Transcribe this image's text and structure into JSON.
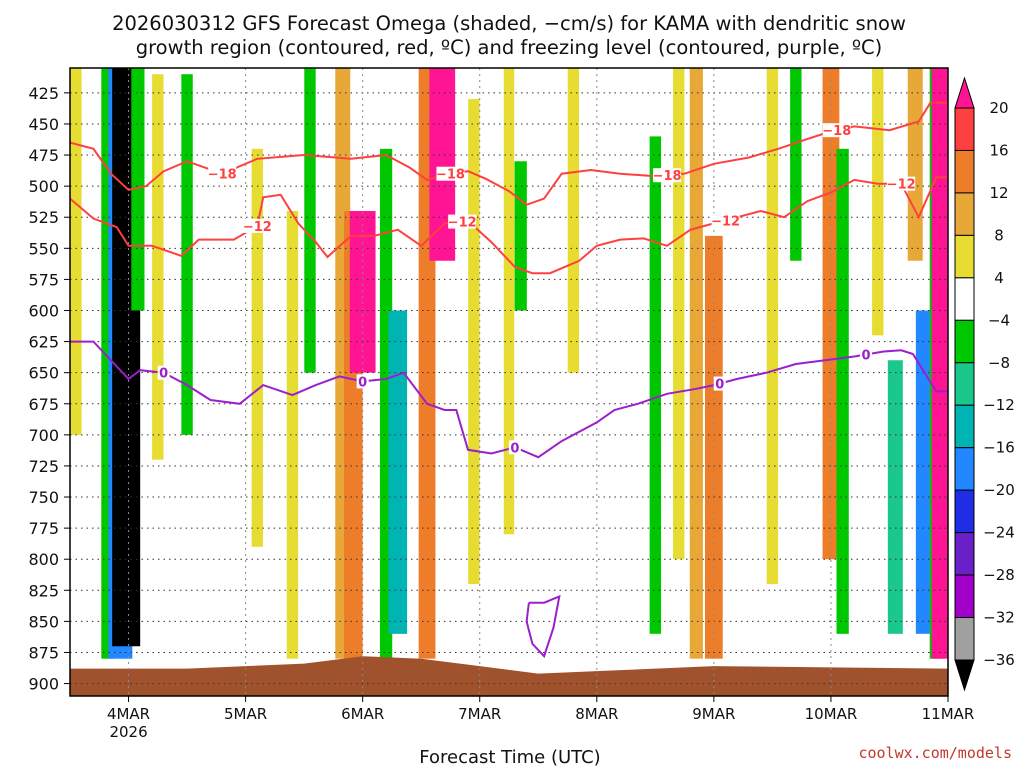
{
  "title_lines": [
    "2026030312 GFS Forecast Omega (shaded, −cm/s) for KAMA with dendritic snow",
    "growth region (contoured, red, ºC) and freezing level (contoured, purple, ºC)"
  ],
  "credit": "coolwx.com/models",
  "chart_data": {
    "type": "heatmap",
    "title": "2026030312 GFS Forecast Omega (shaded, −cm/s) for KAMA with dendritic snow growth region (contoured, red, ºC) and freezing level (contoured, purple, ºC)",
    "xlabel": "Forecast Time (UTC)",
    "ylabel": "",
    "x_range_days": [
      3.5,
      11.0
    ],
    "y_range_hpa": [
      405,
      910
    ],
    "y_ticks": [
      425,
      450,
      475,
      500,
      525,
      550,
      575,
      600,
      625,
      650,
      675,
      700,
      725,
      750,
      775,
      800,
      825,
      850,
      875,
      900
    ],
    "x_ticks": [
      {
        "day": 4,
        "label": "4MAR",
        "sub": "2026"
      },
      {
        "day": 5,
        "label": "5MAR",
        "sub": ""
      },
      {
        "day": 6,
        "label": "6MAR",
        "sub": ""
      },
      {
        "day": 7,
        "label": "7MAR",
        "sub": ""
      },
      {
        "day": 8,
        "label": "8MAR",
        "sub": ""
      },
      {
        "day": 9,
        "label": "9MAR",
        "sub": ""
      },
      {
        "day": 10,
        "label": "10MAR",
        "sub": ""
      },
      {
        "day": 11,
        "label": "11MAR",
        "sub": ""
      }
    ],
    "grid": true,
    "colorbar": {
      "labels": [
        "20",
        "16",
        "12",
        "8",
        "4",
        "−4",
        "−8",
        "−12",
        "−16",
        "−20",
        "−24",
        "−28",
        "−32",
        "−36"
      ],
      "bins": [
        {
          "min": 20,
          "max": 99,
          "color": "#ff1493"
        },
        {
          "min": 16,
          "max": 20,
          "color": "#ff4040"
        },
        {
          "min": 12,
          "max": 16,
          "color": "#ee7d2a"
        },
        {
          "min": 8,
          "max": 12,
          "color": "#e8a838"
        },
        {
          "min": 4,
          "max": 8,
          "color": "#e6dc32"
        },
        {
          "min": -4,
          "max": 4,
          "color": "#ffffff"
        },
        {
          "min": -8,
          "max": -4,
          "color": "#00c800"
        },
        {
          "min": -12,
          "max": -8,
          "color": "#1bc88c"
        },
        {
          "min": -16,
          "max": -12,
          "color": "#00b4b4"
        },
        {
          "min": -20,
          "max": -16,
          "color": "#2288ff"
        },
        {
          "min": -24,
          "max": -20,
          "color": "#1f2ee6"
        },
        {
          "min": -28,
          "max": -24,
          "color": "#6a20c8"
        },
        {
          "min": -32,
          "max": -28,
          "color": "#a000c8"
        },
        {
          "min": -36,
          "max": -32,
          "color": "#a0a0a0"
        },
        {
          "min": -99,
          "max": -36,
          "color": "#000000"
        }
      ]
    },
    "omega_features": [
      {
        "day": 3.55,
        "p_top": 405,
        "p_bot": 700,
        "value": 6
      },
      {
        "day": 3.82,
        "p_top": 405,
        "p_bot": 880,
        "value": -7
      },
      {
        "day": 3.93,
        "p_top": 405,
        "p_bot": 880,
        "value": -20
      },
      {
        "day": 3.98,
        "p_top": 405,
        "p_bot": 870,
        "value": -40
      },
      {
        "day": 4.08,
        "p_top": 405,
        "p_bot": 600,
        "value": -8
      },
      {
        "day": 4.25,
        "p_top": 410,
        "p_bot": 720,
        "value": 6
      },
      {
        "day": 4.5,
        "p_top": 410,
        "p_bot": 700,
        "value": -6
      },
      {
        "day": 5.1,
        "p_top": 470,
        "p_bot": 790,
        "value": 6
      },
      {
        "day": 5.4,
        "p_top": 520,
        "p_bot": 880,
        "value": 6
      },
      {
        "day": 5.55,
        "p_top": 405,
        "p_bot": 650,
        "value": -6
      },
      {
        "day": 5.83,
        "p_top": 405,
        "p_bot": 880,
        "value": 10
      },
      {
        "day": 5.92,
        "p_top": 520,
        "p_bot": 880,
        "value": 14
      },
      {
        "day": 6.0,
        "p_top": 520,
        "p_bot": 650,
        "value": 22
      },
      {
        "day": 6.2,
        "p_top": 470,
        "p_bot": 880,
        "value": -7
      },
      {
        "day": 6.3,
        "p_top": 600,
        "p_bot": 860,
        "value": -14
      },
      {
        "day": 6.55,
        "p_top": 405,
        "p_bot": 880,
        "value": 12
      },
      {
        "day": 6.68,
        "p_top": 405,
        "p_bot": 560,
        "value": 22
      },
      {
        "day": 6.95,
        "p_top": 430,
        "p_bot": 820,
        "value": 6
      },
      {
        "day": 7.25,
        "p_top": 405,
        "p_bot": 780,
        "value": 5
      },
      {
        "day": 7.35,
        "p_top": 480,
        "p_bot": 600,
        "value": -7
      },
      {
        "day": 7.8,
        "p_top": 405,
        "p_bot": 650,
        "value": 6
      },
      {
        "day": 8.5,
        "p_top": 460,
        "p_bot": 860,
        "value": -6
      },
      {
        "day": 8.7,
        "p_top": 405,
        "p_bot": 800,
        "value": 6
      },
      {
        "day": 8.85,
        "p_top": 405,
        "p_bot": 880,
        "value": 8
      },
      {
        "day": 9.0,
        "p_top": 540,
        "p_bot": 880,
        "value": 13
      },
      {
        "day": 9.5,
        "p_top": 405,
        "p_bot": 820,
        "value": 6
      },
      {
        "day": 9.7,
        "p_top": 405,
        "p_bot": 560,
        "value": -6
      },
      {
        "day": 10.0,
        "p_top": 405,
        "p_bot": 800,
        "value": 12
      },
      {
        "day": 10.1,
        "p_top": 470,
        "p_bot": 860,
        "value": -7
      },
      {
        "day": 10.4,
        "p_top": 405,
        "p_bot": 620,
        "value": 6
      },
      {
        "day": 10.55,
        "p_top": 640,
        "p_bot": 860,
        "value": -10
      },
      {
        "day": 10.72,
        "p_top": 405,
        "p_bot": 560,
        "value": 10
      },
      {
        "day": 10.82,
        "p_top": 600,
        "p_bot": 860,
        "value": -18
      },
      {
        "day": 10.9,
        "p_top": 405,
        "p_bot": 880,
        "value": -8
      },
      {
        "day": 10.97,
        "p_top": 405,
        "p_bot": 880,
        "value": 22
      }
    ],
    "contours": [
      {
        "name": "dgz -18C",
        "label": "−18",
        "color": "#ff4040",
        "points": [
          [
            3.5,
            465
          ],
          [
            3.7,
            470
          ],
          [
            3.85,
            490
          ],
          [
            4.0,
            503
          ],
          [
            4.15,
            500
          ],
          [
            4.3,
            488
          ],
          [
            4.5,
            480
          ],
          [
            4.8,
            490
          ],
          [
            5.1,
            478
          ],
          [
            5.5,
            475
          ],
          [
            5.9,
            478
          ],
          [
            6.2,
            475
          ],
          [
            6.4,
            485
          ],
          [
            6.55,
            495
          ],
          [
            6.75,
            490
          ],
          [
            6.9,
            488
          ],
          [
            7.05,
            494
          ],
          [
            7.25,
            504
          ],
          [
            7.4,
            515
          ],
          [
            7.55,
            510
          ],
          [
            7.7,
            490
          ],
          [
            7.95,
            487
          ],
          [
            8.2,
            490
          ],
          [
            8.5,
            492
          ],
          [
            8.75,
            490
          ],
          [
            9.0,
            482
          ],
          [
            9.3,
            477
          ],
          [
            9.55,
            470
          ],
          [
            9.8,
            462
          ],
          [
            10.0,
            456
          ],
          [
            10.2,
            452
          ],
          [
            10.5,
            455
          ],
          [
            10.75,
            448
          ],
          [
            10.85,
            433
          ],
          [
            11.0,
            433
          ]
        ],
        "labels_at": [
          4.8,
          6.75,
          8.6,
          10.05
        ]
      },
      {
        "name": "dgz -12C",
        "label": "−12",
        "color": "#ff4040",
        "points": [
          [
            3.5,
            510
          ],
          [
            3.7,
            526
          ],
          [
            3.9,
            533
          ],
          [
            4.0,
            548
          ],
          [
            4.2,
            548
          ],
          [
            4.45,
            556
          ],
          [
            4.6,
            543
          ],
          [
            4.9,
            543
          ],
          [
            5.1,
            532
          ],
          [
            5.15,
            509
          ],
          [
            5.3,
            507
          ],
          [
            5.45,
            530
          ],
          [
            5.6,
            545
          ],
          [
            5.7,
            557
          ],
          [
            5.9,
            540
          ],
          [
            6.1,
            540
          ],
          [
            6.3,
            535
          ],
          [
            6.5,
            548
          ],
          [
            6.7,
            530
          ],
          [
            6.9,
            528
          ],
          [
            7.1,
            545
          ],
          [
            7.3,
            565
          ],
          [
            7.45,
            570
          ],
          [
            7.6,
            570
          ],
          [
            7.85,
            560
          ],
          [
            8.0,
            548
          ],
          [
            8.2,
            543
          ],
          [
            8.4,
            542
          ],
          [
            8.6,
            548
          ],
          [
            8.8,
            535
          ],
          [
            9.0,
            530
          ],
          [
            9.2,
            525
          ],
          [
            9.4,
            520
          ],
          [
            9.6,
            525
          ],
          [
            9.8,
            512
          ],
          [
            10.0,
            505
          ],
          [
            10.2,
            495
          ],
          [
            10.4,
            498
          ],
          [
            10.6,
            498
          ],
          [
            10.75,
            525
          ],
          [
            10.9,
            493
          ],
          [
            11.0,
            493
          ]
        ],
        "labels_at": [
          5.1,
          6.85,
          9.1,
          10.6
        ]
      },
      {
        "name": "freezing 0C",
        "label": "0",
        "color": "#9b1fcc",
        "points": [
          [
            3.5,
            625
          ],
          [
            3.7,
            625
          ],
          [
            3.9,
            645
          ],
          [
            4.0,
            655
          ],
          [
            4.1,
            648
          ],
          [
            4.3,
            650
          ],
          [
            4.5,
            660
          ],
          [
            4.7,
            672
          ],
          [
            4.95,
            675
          ],
          [
            5.15,
            660
          ],
          [
            5.4,
            668
          ],
          [
            5.6,
            660
          ],
          [
            5.8,
            653
          ],
          [
            6.0,
            657
          ],
          [
            6.2,
            655
          ],
          [
            6.35,
            650
          ],
          [
            6.55,
            675
          ],
          [
            6.7,
            680
          ],
          [
            6.8,
            680
          ],
          [
            6.9,
            712
          ],
          [
            7.1,
            715
          ],
          [
            7.3,
            710
          ],
          [
            7.5,
            718
          ],
          [
            7.7,
            705
          ],
          [
            7.9,
            695
          ],
          [
            8.0,
            690
          ],
          [
            8.15,
            680
          ],
          [
            8.35,
            675
          ],
          [
            8.6,
            667
          ],
          [
            8.85,
            663
          ],
          [
            9.0,
            660
          ],
          [
            9.2,
            655
          ],
          [
            9.45,
            650
          ],
          [
            9.7,
            643
          ],
          [
            9.95,
            640
          ],
          [
            10.2,
            637
          ],
          [
            10.45,
            633
          ],
          [
            10.6,
            632
          ],
          [
            10.7,
            635
          ],
          [
            10.8,
            650
          ],
          [
            10.9,
            665
          ],
          [
            11.0,
            665
          ]
        ],
        "labels_at": [
          4.3,
          6.0,
          7.3,
          9.05,
          10.3
        ]
      },
      {
        "name": "freezing 0C closed",
        "label": "",
        "color": "#9b1fcc",
        "points": [
          [
            7.42,
            835
          ],
          [
            7.55,
            835
          ],
          [
            7.68,
            830
          ],
          [
            7.63,
            855
          ],
          [
            7.55,
            878
          ],
          [
            7.45,
            868
          ],
          [
            7.4,
            850
          ],
          [
            7.42,
            835
          ]
        ],
        "labels_at": []
      }
    ],
    "terrain": {
      "color": "#a0522d",
      "surface_hpa": [
        [
          3.5,
          888
        ],
        [
          4.5,
          888
        ],
        [
          5.5,
          884
        ],
        [
          6.0,
          878
        ],
        [
          6.5,
          880
        ],
        [
          7.0,
          886
        ],
        [
          7.5,
          892
        ],
        [
          8.0,
          890
        ],
        [
          8.5,
          888
        ],
        [
          9.0,
          886
        ],
        [
          10.0,
          887
        ],
        [
          11.0,
          888
        ]
      ]
    }
  }
}
